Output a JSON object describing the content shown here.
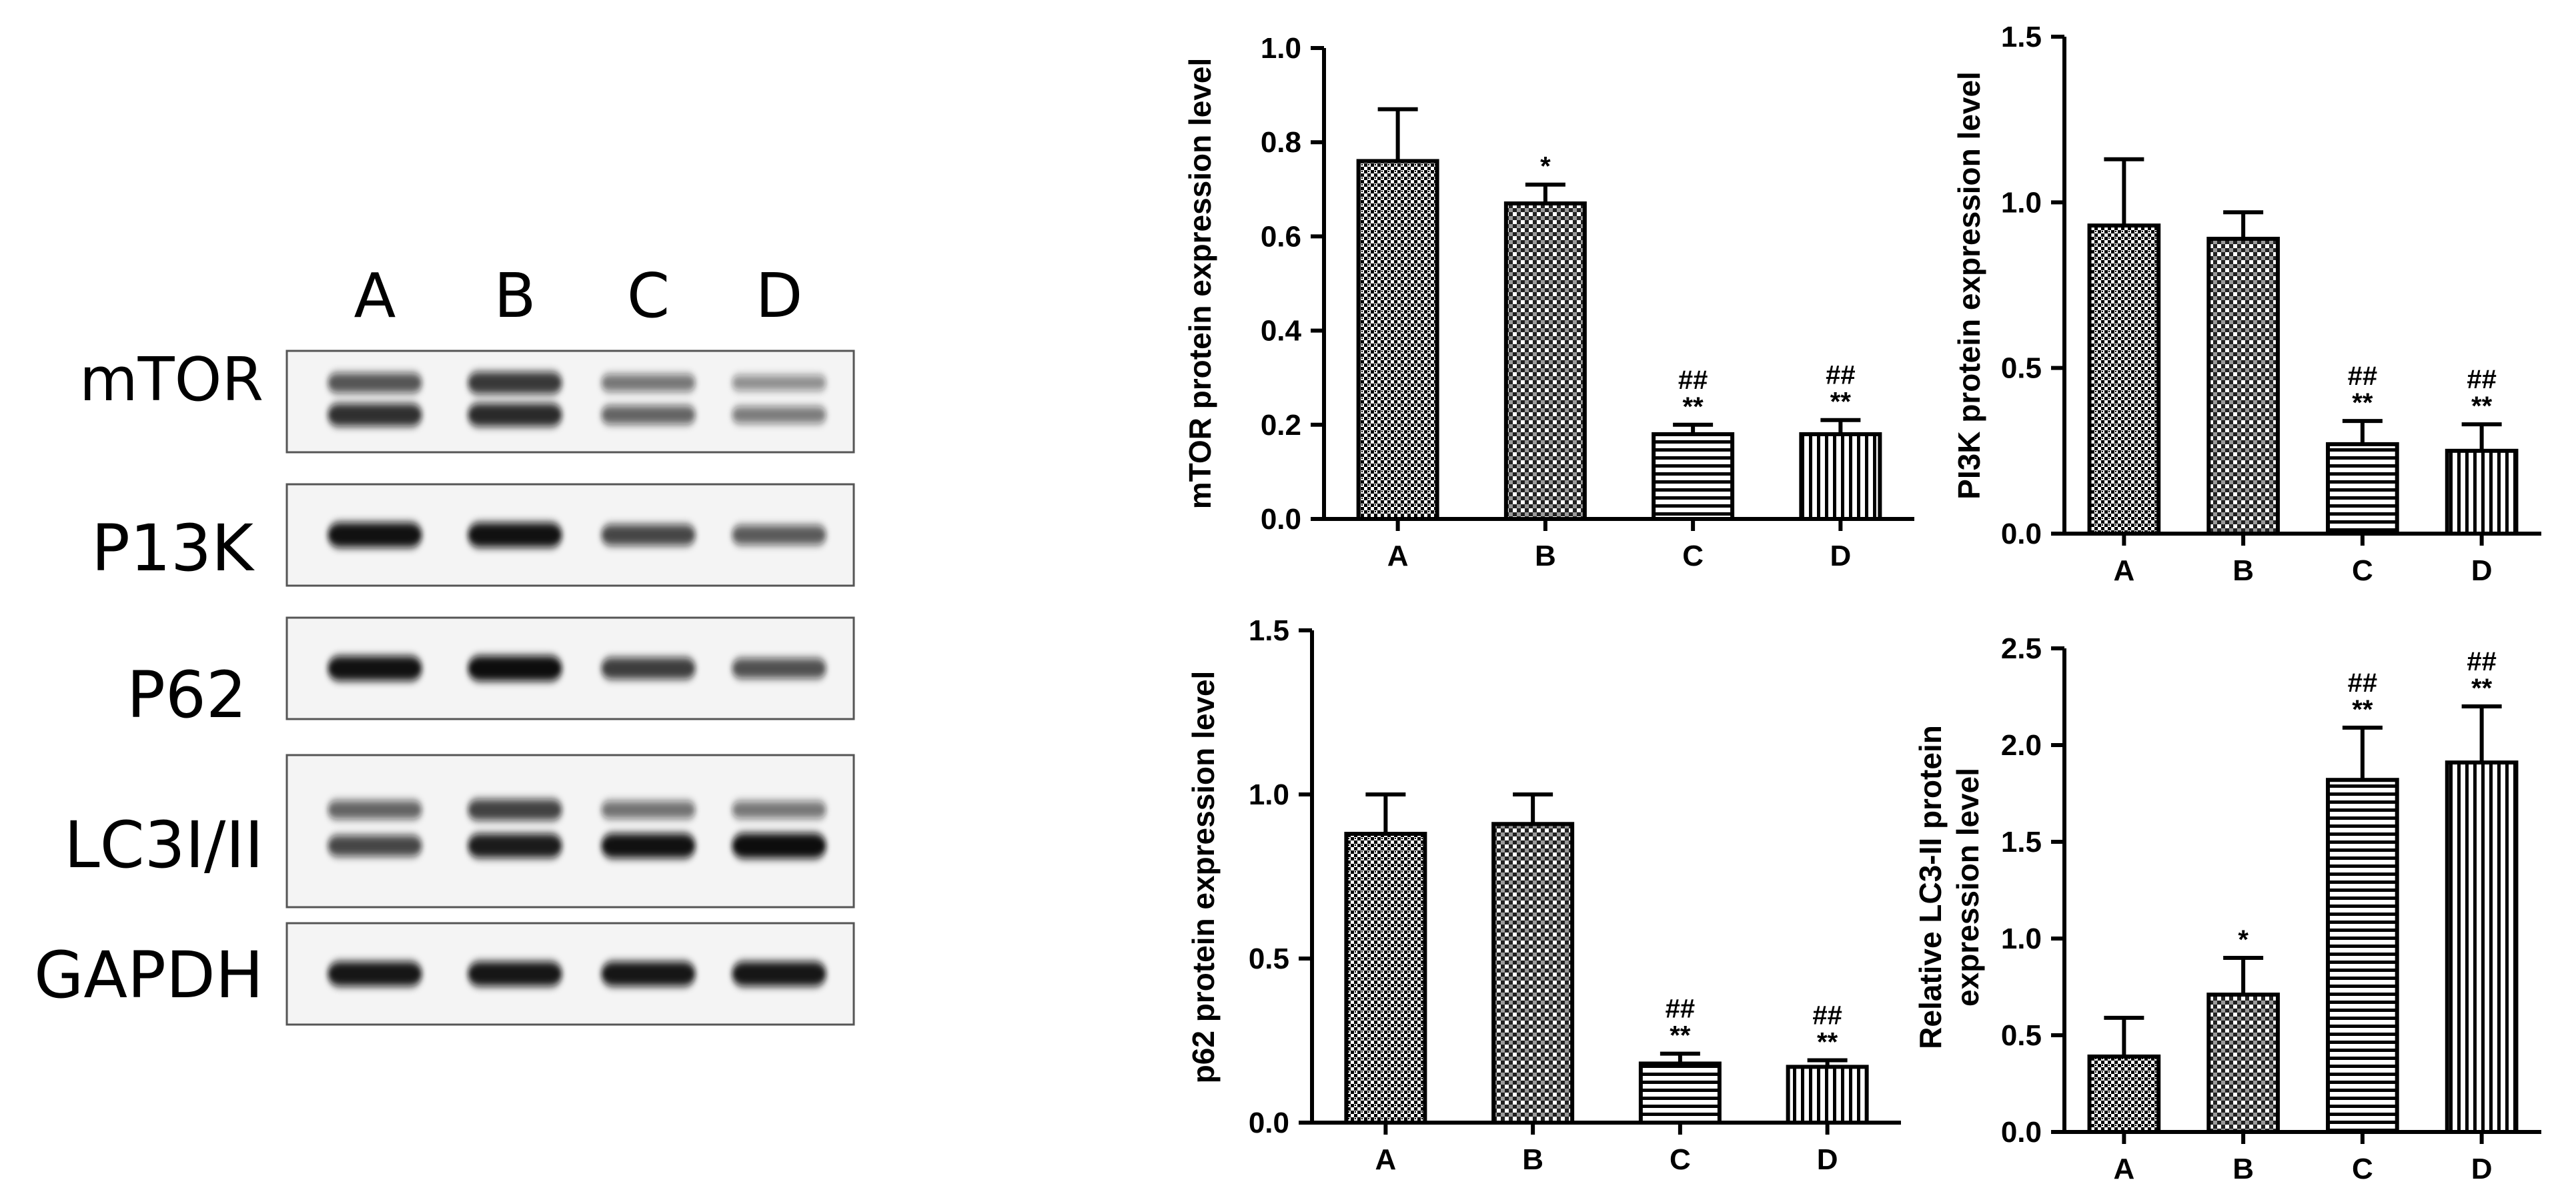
{
  "blot": {
    "lanes": [
      "A",
      "B",
      "C",
      "D"
    ],
    "rows": [
      {
        "label": "mTOR",
        "bands": [
          [
            0.62,
            0.78,
            0.45,
            0.32
          ],
          [
            0.82,
            0.85,
            0.55,
            0.42
          ]
        ]
      },
      {
        "label": "P13K",
        "bands": [
          [
            0.98,
            0.97,
            0.7,
            0.6
          ]
        ]
      },
      {
        "label": "P62",
        "bands": [
          [
            0.97,
            1.0,
            0.75,
            0.65
          ]
        ]
      },
      {
        "label": "LC3I/II",
        "bands": [
          [
            0.55,
            0.72,
            0.48,
            0.45
          ],
          [
            0.7,
            0.92,
            0.97,
            1.0
          ]
        ]
      },
      {
        "label": "GAPDH",
        "bands": [
          [
            0.95,
            0.95,
            0.95,
            0.95
          ]
        ]
      }
    ]
  },
  "colors": {
    "bar_outline": "#000000",
    "band": "#111111",
    "membrane": "#f4f4f4"
  },
  "chart_data": [
    {
      "type": "bar",
      "categories": [
        "A",
        "B",
        "C",
        "D"
      ],
      "values": [
        0.76,
        0.67,
        0.18,
        0.18
      ],
      "errors": [
        0.11,
        0.04,
        0.02,
        0.03
      ],
      "annotations": [
        [],
        [
          "*"
        ],
        [
          "**",
          "##"
        ],
        [
          "**",
          "##"
        ]
      ],
      "patterns": [
        "dots-dense",
        "checker",
        "hlines",
        "vlines"
      ],
      "ylabel": "mTOR protein expression level",
      "ylim": [
        0,
        1.0
      ],
      "yticks": [
        "0.0",
        "0.2",
        "0.4",
        "0.6",
        "0.8",
        "1.0"
      ]
    },
    {
      "type": "bar",
      "categories": [
        "A",
        "B",
        "C",
        "D"
      ],
      "values": [
        0.93,
        0.89,
        0.27,
        0.25
      ],
      "errors": [
        0.2,
        0.08,
        0.07,
        0.08
      ],
      "annotations": [
        [],
        [],
        [
          "**",
          "##"
        ],
        [
          "**",
          "##"
        ]
      ],
      "patterns": [
        "dots-dense",
        "checker",
        "hlines",
        "vlines"
      ],
      "ylabel": "PI3K protein expression level",
      "ylim": [
        0,
        1.5
      ],
      "yticks": [
        "0.0",
        "0.5",
        "1.0",
        "1.5"
      ]
    },
    {
      "type": "bar",
      "categories": [
        "A",
        "B",
        "C",
        "D"
      ],
      "values": [
        0.88,
        0.91,
        0.18,
        0.17
      ],
      "errors": [
        0.12,
        0.09,
        0.03,
        0.02
      ],
      "annotations": [
        [],
        [],
        [
          "**",
          "##"
        ],
        [
          "**",
          "##"
        ]
      ],
      "patterns": [
        "dots-dense",
        "checker",
        "hlines",
        "vlines"
      ],
      "ylabel": "p62 protein expression level",
      "ylim": [
        0,
        1.5
      ],
      "yticks": [
        "0.0",
        "0.5",
        "1.0",
        "1.5"
      ]
    },
    {
      "type": "bar",
      "categories": [
        "A",
        "B",
        "C",
        "D"
      ],
      "values": [
        0.39,
        0.71,
        1.82,
        1.91
      ],
      "errors": [
        0.2,
        0.19,
        0.27,
        0.29
      ],
      "annotations": [
        [],
        [
          "*"
        ],
        [
          "**",
          "##"
        ],
        [
          "**",
          "##"
        ]
      ],
      "patterns": [
        "dots-dense",
        "checker",
        "hlines",
        "vlines"
      ],
      "ylabel": [
        "Relative LC3-II protein",
        "expression level"
      ],
      "ylim": [
        0,
        2.5
      ],
      "yticks": [
        "0.0",
        "0.5",
        "1.0",
        "1.5",
        "2.0",
        "2.5"
      ]
    }
  ]
}
